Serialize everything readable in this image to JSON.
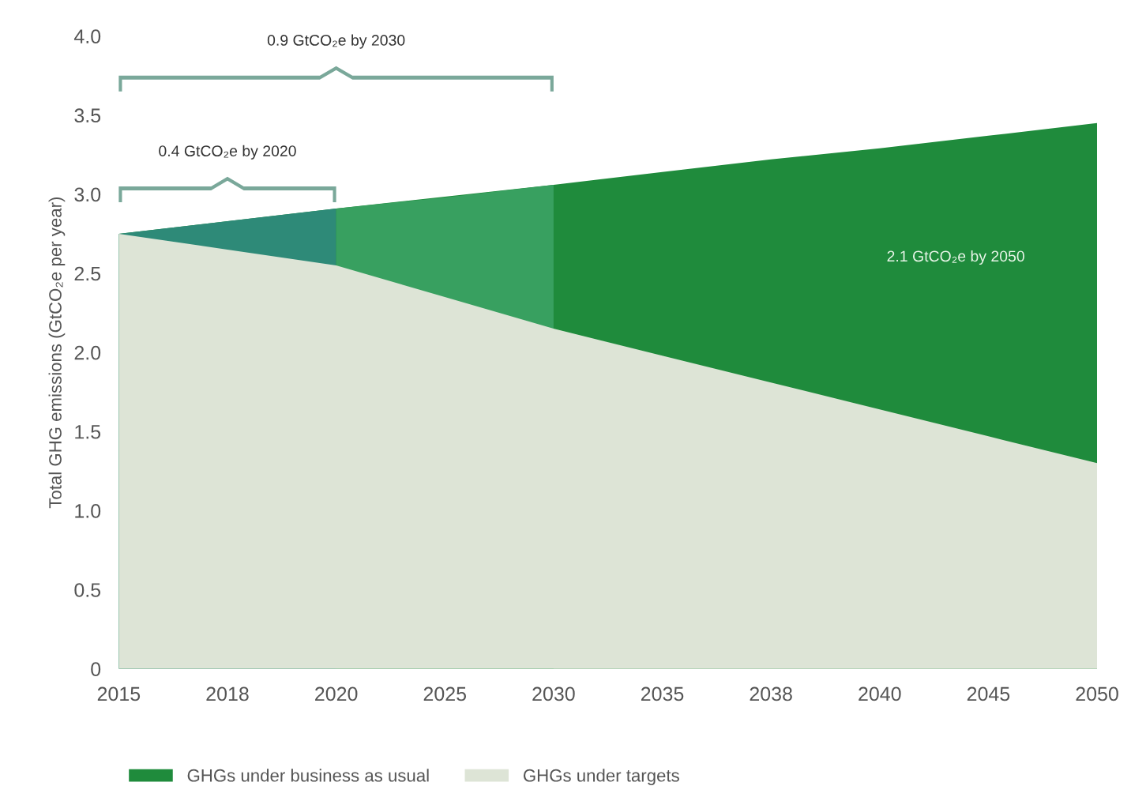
{
  "chart_data": {
    "type": "area",
    "ylabel": "Total GHG emissions (GtCO₂e per year)",
    "categories": [
      "2015",
      "2018",
      "2020",
      "2025",
      "2030",
      "2035",
      "2038",
      "2040",
      "2045",
      "2050"
    ],
    "series": [
      {
        "name": "GHGs under business as usual",
        "color": "#1f8b3c",
        "values": [
          2.75,
          null,
          2.91,
          null,
          3.06,
          3.14,
          3.22,
          3.29,
          3.37,
          3.45
        ]
      },
      {
        "color": "#2e8a78",
        "values": [
          2.75,
          2.83,
          2.91,
          null,
          null,
          null,
          null,
          null,
          null,
          null
        ]
      },
      {
        "color": "#38a060",
        "values": [
          null,
          null,
          2.91,
          2.98,
          3.06,
          null,
          null,
          null,
          null,
          null
        ]
      },
      {
        "name": "GHGs under targets",
        "color": "#dde4d6",
        "values": [
          2.75,
          2.65,
          2.55,
          2.35,
          2.15,
          1.98,
          1.81,
          1.64,
          1.47,
          1.3
        ]
      }
    ],
    "ylim": [
      0,
      4.0
    ],
    "yticks": [
      {
        "value": 0,
        "label": "0"
      },
      0.5,
      {
        "value": 1,
        "label": "1.0"
      },
      1.5,
      {
        "value": 2,
        "label": "2.0"
      },
      2.5,
      {
        "value": 3,
        "label": "3.0"
      },
      3.5,
      {
        "value": 4,
        "label": "4.0"
      }
    ],
    "annotations": [
      "0.4 GtCO₂e by 2020",
      "0.9 GtCO₂e by 2030",
      "2.1 GtCO₂e by 2050"
    ],
    "legend": "bottom",
    "grid": false
  }
}
